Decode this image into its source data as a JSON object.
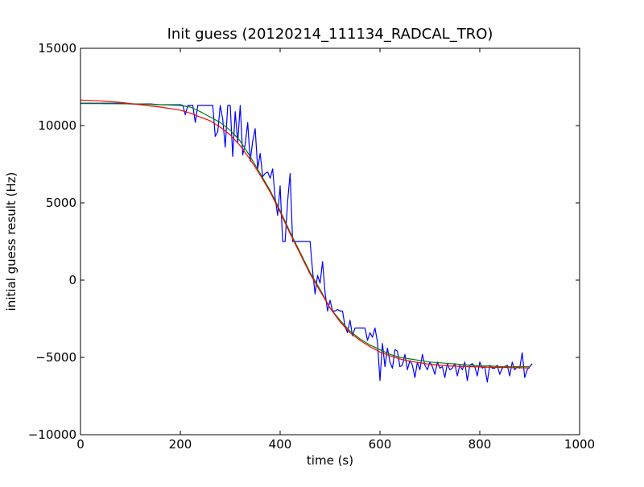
{
  "chart_data": {
    "type": "line",
    "title": "Init guess (20120214_111134_RADCAL_TRO)",
    "xlabel": "time (s)",
    "ylabel": "initial guess result (Hz)",
    "xlim": [
      0,
      1000
    ],
    "ylim": [
      -10000,
      15000
    ],
    "xticks": [
      0,
      200,
      400,
      600,
      800,
      1000
    ],
    "yticks": [
      -10000,
      -5000,
      0,
      5000,
      10000,
      15000
    ],
    "xtick_labels": [
      "0",
      "200",
      "400",
      "600",
      "800",
      "1000"
    ],
    "ytick_labels": [
      "−10000",
      "−5000",
      "0",
      "5000",
      "10000",
      "15000"
    ],
    "grid": false,
    "legend": "none",
    "series": [
      {
        "color": "#0000ff",
        "x": [
          0,
          20,
          40,
          60,
          80,
          100,
          120,
          140,
          160,
          180,
          200,
          205,
          210,
          215,
          220,
          225,
          230,
          235,
          240,
          245,
          250,
          255,
          260,
          265,
          270,
          275,
          280,
          285,
          290,
          295,
          300,
          305,
          310,
          315,
          320,
          325,
          330,
          335,
          340,
          345,
          350,
          355,
          360,
          365,
          370,
          375,
          380,
          385,
          390,
          395,
          400,
          405,
          410,
          415,
          420,
          425,
          430,
          435,
          440,
          445,
          450,
          455,
          460,
          465,
          470,
          475,
          480,
          485,
          490,
          495,
          500,
          505,
          510,
          515,
          520,
          525,
          530,
          535,
          540,
          545,
          550,
          555,
          560,
          565,
          570,
          575,
          580,
          585,
          590,
          595,
          600,
          605,
          610,
          615,
          620,
          625,
          630,
          635,
          640,
          645,
          650,
          655,
          660,
          665,
          670,
          675,
          680,
          685,
          690,
          695,
          700,
          705,
          710,
          715,
          720,
          725,
          730,
          735,
          740,
          745,
          750,
          755,
          760,
          765,
          770,
          775,
          780,
          785,
          790,
          795,
          800,
          805,
          810,
          815,
          820,
          825,
          830,
          835,
          840,
          845,
          850,
          855,
          860,
          865,
          870,
          875,
          880,
          885,
          890,
          895,
          900,
          905
        ],
        "y": [
          11450,
          11450,
          11450,
          11450,
          11450,
          11400,
          11400,
          11400,
          11350,
          11350,
          11350,
          11300,
          10700,
          11300,
          11300,
          11300,
          10200,
          11300,
          11300,
          11300,
          11300,
          11300,
          11300,
          11300,
          9300,
          9600,
          11300,
          10400,
          8600,
          11300,
          11300,
          8000,
          10900,
          8900,
          11300,
          8100,
          8800,
          10200,
          7700,
          9000,
          9800,
          7200,
          8200,
          6700,
          6900,
          7000,
          6600,
          7200,
          5300,
          4200,
          6100,
          2500,
          2500,
          5100,
          6900,
          2500,
          2500,
          2500,
          2500,
          2500,
          2500,
          2500,
          2500,
          600,
          -900,
          300,
          -200,
          1200,
          -800,
          -2000,
          -1300,
          -2000,
          -2000,
          -1900,
          -2000,
          -2000,
          -3000,
          -3400,
          -2600,
          -3600,
          -3100,
          -3100,
          -3100,
          -3100,
          -3100,
          -3900,
          -3400,
          -3700,
          -3100,
          -4000,
          -6500,
          -4100,
          -5600,
          -4400,
          -5300,
          -5700,
          -4500,
          -4600,
          -5600,
          -5500,
          -4800,
          -5800,
          -5200,
          -5500,
          -6300,
          -5300,
          -5800,
          -4800,
          -5500,
          -5800,
          -5300,
          -5600,
          -6100,
          -5300,
          -5700,
          -5600,
          -6300,
          -5400,
          -5800,
          -5700,
          -5400,
          -6200,
          -5500,
          -5800,
          -5300,
          -6500,
          -5500,
          -5400,
          -5600,
          -6200,
          -5300,
          -5700,
          -5600,
          -6600,
          -5500,
          -5700,
          -5700,
          -5500,
          -6100,
          -5700,
          -5600,
          -5500,
          -6200,
          -5300,
          -5800,
          -5600,
          -5700,
          -4700,
          -6300,
          -5800,
          -5600,
          -5400
        ]
      },
      {
        "color": "#008000",
        "x": [
          0,
          40,
          80,
          120,
          160,
          200,
          220,
          240,
          260,
          280,
          300,
          320,
          340,
          360,
          380,
          400,
          420,
          440,
          460,
          480,
          500,
          520,
          540,
          560,
          580,
          600,
          620,
          640,
          660,
          680,
          700,
          720,
          740,
          760,
          780,
          800,
          820,
          840,
          860,
          880,
          900
        ],
        "y": [
          11420,
          11420,
          11410,
          11400,
          11350,
          11300,
          11200,
          10900,
          10550,
          10200,
          9700,
          9000,
          8000,
          6900,
          5800,
          4500,
          3100,
          1800,
          500,
          -600,
          -1800,
          -2600,
          -3300,
          -3800,
          -4200,
          -4500,
          -4800,
          -5000,
          -5100,
          -5200,
          -5300,
          -5350,
          -5400,
          -5450,
          -5500,
          -5550,
          -5550,
          -5600,
          -5600,
          -5600,
          -5600
        ]
      },
      {
        "color": "#ff0000",
        "x": [
          0,
          40,
          80,
          120,
          160,
          200,
          220,
          240,
          260,
          280,
          300,
          320,
          340,
          360,
          380,
          400,
          420,
          440,
          460,
          480,
          500,
          520,
          540,
          560,
          580,
          600,
          620,
          640,
          660,
          680,
          700,
          720,
          740,
          760,
          780,
          800,
          820,
          840,
          860,
          880,
          900
        ],
        "y": [
          11650,
          11600,
          11500,
          11350,
          11200,
          11000,
          10800,
          10550,
          10300,
          9900,
          9400,
          8700,
          7800,
          6800,
          5700,
          4400,
          3000,
          1700,
          400,
          -700,
          -1800,
          -2700,
          -3400,
          -3900,
          -4300,
          -4650,
          -4900,
          -5100,
          -5250,
          -5350,
          -5450,
          -5500,
          -5550,
          -5580,
          -5600,
          -5620,
          -5640,
          -5650,
          -5660,
          -5670,
          -5680
        ]
      }
    ]
  }
}
